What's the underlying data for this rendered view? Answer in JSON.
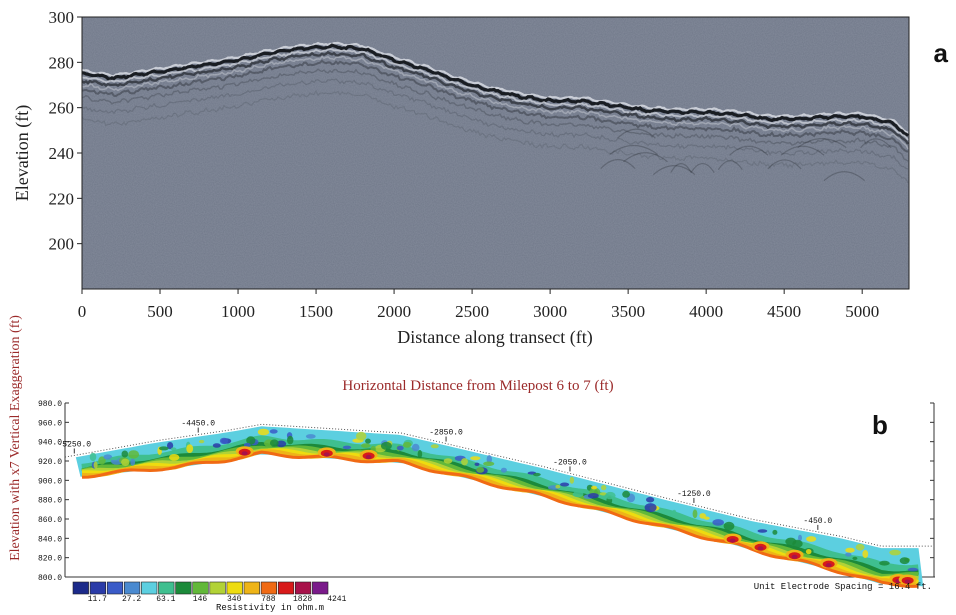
{
  "panel_a": {
    "label": "a",
    "colors": {
      "background": "#6f7788",
      "reflector": "#14171c",
      "highlight": "#e4e7ee"
    }
  },
  "panel_b": {
    "label": "b",
    "title": "Horizontal Distance from Milepost 6 to 7 (ft)",
    "ylabel": "Elevation with x7 Vertical Exaggeration (ft)",
    "legend_title": "Resistivity in ohm.m",
    "legend_labels": [
      "11.7",
      "27.2",
      "63.1",
      "146",
      "340",
      "788",
      "1828",
      "4241"
    ],
    "legend_colors": [
      "#1c2a8a",
      "#2a3ba8",
      "#3a5bc8",
      "#4a8ad0",
      "#5ccfe0",
      "#3fbf8f",
      "#1c8a3a",
      "#62b83a",
      "#b2d236",
      "#eedc10",
      "#eeb418",
      "#f06a14",
      "#d81a1a",
      "#a8124a",
      "#7a1a8a"
    ],
    "spacing_note": "Unit Electrode Spacing = 16.4 ft."
  },
  "chart_data": [
    {
      "type": "line",
      "title": "",
      "xlabel": "Distance along transect (ft)",
      "ylabel": "Elevation (ft)",
      "xlim": [
        0,
        5300
      ],
      "ylim": [
        180,
        300
      ],
      "x_ticks": [
        0,
        500,
        1000,
        1500,
        2000,
        2500,
        3000,
        3500,
        4000,
        4500,
        5000
      ],
      "y_ticks": [
        200,
        220,
        240,
        260,
        280,
        300
      ],
      "grid": false,
      "series": [
        {
          "x": [
            0,
            200,
            400,
            600,
            800,
            1000,
            1200,
            1400,
            1600,
            1800,
            2000,
            2200,
            2400,
            2600,
            2800,
            3000,
            3200,
            3400,
            3600,
            3800,
            4000,
            4200,
            4400,
            4600,
            4800,
            5000,
            5200,
            5300
          ],
          "y": [
            275,
            273,
            275,
            277,
            279,
            281,
            284,
            286,
            287,
            286,
            281,
            277,
            272,
            268,
            265,
            263,
            263,
            261,
            259,
            258,
            258,
            257,
            255,
            255,
            256,
            256,
            253,
            247
          ]
        }
      ]
    },
    {
      "type": "area",
      "title": "Horizontal Distance from Milepost 6 to 7 (ft)",
      "ylabel": "Elevation with x7 Vertical Exaggeration (ft)",
      "xlim": [
        -5310,
        300
      ],
      "ylim": [
        800,
        980
      ],
      "x_tick_labels": [
        "-5250.0",
        "-4450.0",
        "-2850.0",
        "-2050.0",
        "-1250.0",
        "-450.0"
      ],
      "x_tick_values": [
        -5250,
        -4450,
        -2850,
        -2050,
        -1250,
        -450
      ],
      "y_ticks": [
        800,
        820,
        840,
        860,
        880,
        900,
        920,
        940,
        960,
        980
      ],
      "surface": {
        "x": [
          -5310,
          -4720,
          -4250,
          -4040,
          -3140,
          -2240,
          -1440,
          -880,
          -300,
          -40,
          300
        ],
        "y": [
          924,
          941,
          952,
          958,
          949,
          915,
          882,
          860,
          842,
          832,
          832
        ]
      },
      "colorbar_values": [
        11.7,
        27.2,
        63.1,
        146,
        340,
        788,
        1828,
        4241
      ]
    }
  ]
}
